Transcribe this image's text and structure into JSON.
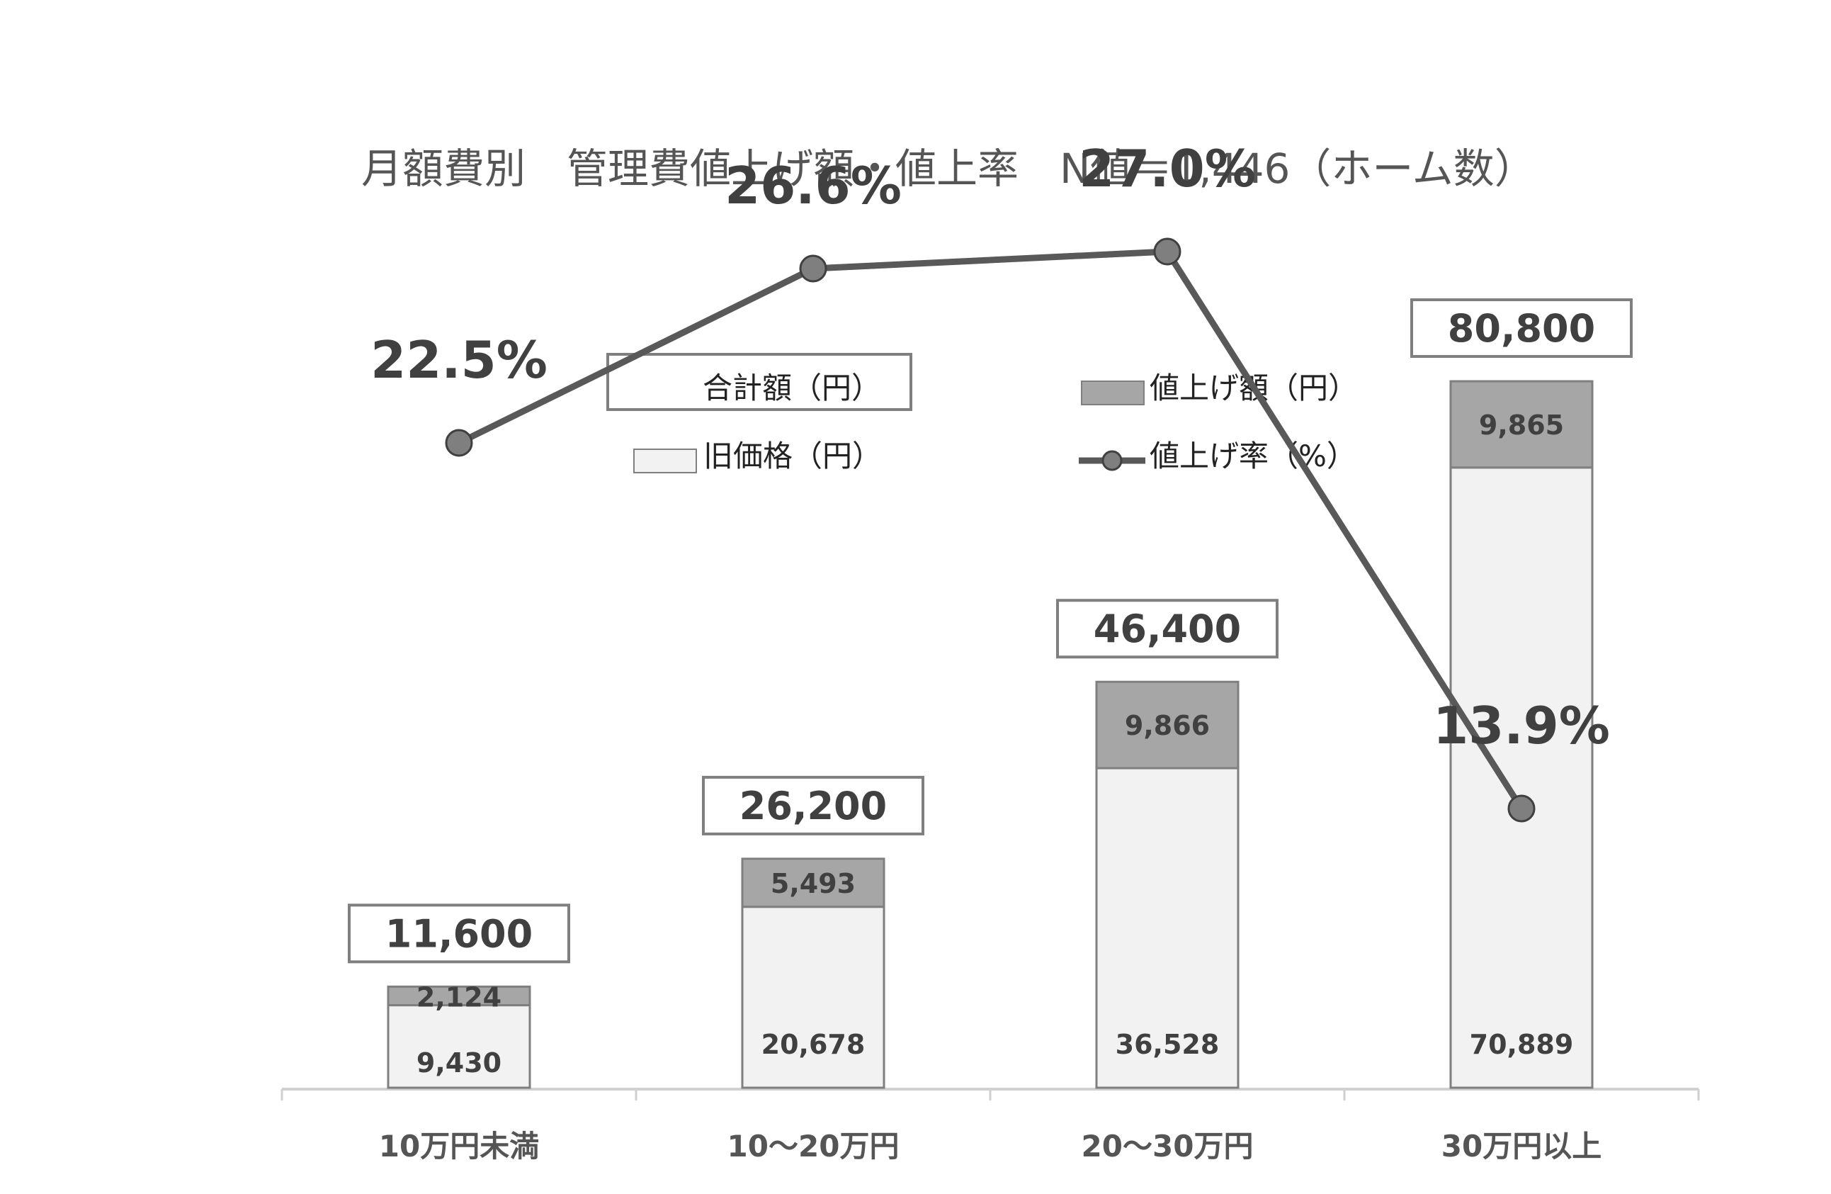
{
  "title": "月額費別　管理費値上げ額・値上率　N値＝1,446（ホーム数）",
  "legend": {
    "total": "合計額（円）",
    "increase": "値上げ額（円）",
    "old": "旧価格（円）",
    "rate": "値上げ率（%）"
  },
  "colors": {
    "old": "#f2f2f2",
    "increase": "#a6a6a6",
    "line": "#595959",
    "marker": "#7f7f7f",
    "border": "#7f7f7f"
  },
  "chart_data": {
    "type": "bar",
    "stacked": true,
    "categories": [
      "10万円未満",
      "10～20万円",
      "20～30万円",
      "30万円以上"
    ],
    "series": [
      {
        "name": "旧価格（円）",
        "values": [
          9430,
          20678,
          36528,
          70889
        ],
        "labels": [
          "9,430",
          "20,678",
          "36,528",
          "70,889"
        ]
      },
      {
        "name": "値上げ額（円）",
        "values": [
          2124,
          5493,
          9866,
          9865
        ],
        "labels": [
          "2,124",
          "5,493",
          "9,866",
          "9,865"
        ]
      }
    ],
    "totals": {
      "name": "合計額（円）",
      "values": [
        11600,
        26200,
        46400,
        80800
      ],
      "labels": [
        "11,600",
        "26,200",
        "46,400",
        "80,800"
      ]
    },
    "line": {
      "name": "値上げ率（%）",
      "values": [
        22.5,
        26.6,
        27.0,
        13.9
      ],
      "labels": [
        "22.5%",
        "26.6%",
        "27.0%",
        "13.9%"
      ]
    },
    "title": "月額費別　管理費値上げ額・値上率　N値＝1,446（ホーム数）",
    "legend_position": "top"
  }
}
